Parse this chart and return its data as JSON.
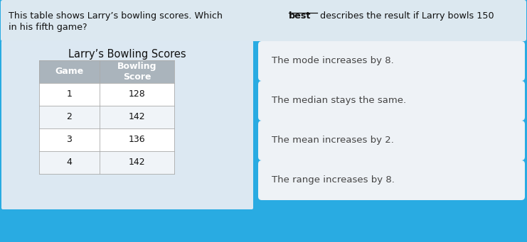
{
  "title_part1": "This table shows Larry’s bowling scores. Which ",
  "title_bold": "best",
  "title_part2": " describes the result if Larry bowls 150",
  "title_line2": "in his fifth game?",
  "table_title": "Larry’s Bowling Scores",
  "col_header1": "Game",
  "col_header2": "Bowling\nScore",
  "rows": [
    [
      "1",
      "128"
    ],
    [
      "2",
      "142"
    ],
    [
      "3",
      "136"
    ],
    [
      "4",
      "142"
    ]
  ],
  "options": [
    "The mode increases by 8.",
    "The median stays the same.",
    "The mean increases by 2.",
    "The range increases by 8."
  ],
  "bg_color": "#29abe2",
  "question_bg": "#dce8f0",
  "table_area_bg": "#dce8f2",
  "table_header_bg": "#aab4bc",
  "table_row_bg1": "#ffffff",
  "table_row_bg2": "#f0f4f8",
  "option_bg": "#eef2f6",
  "text_dark": "#111111",
  "text_gray": "#444444",
  "grid_color": "#aaaaaa",
  "fontsize_q": 9.2,
  "fontsize_table": 9.0,
  "fontsize_option": 9.5
}
